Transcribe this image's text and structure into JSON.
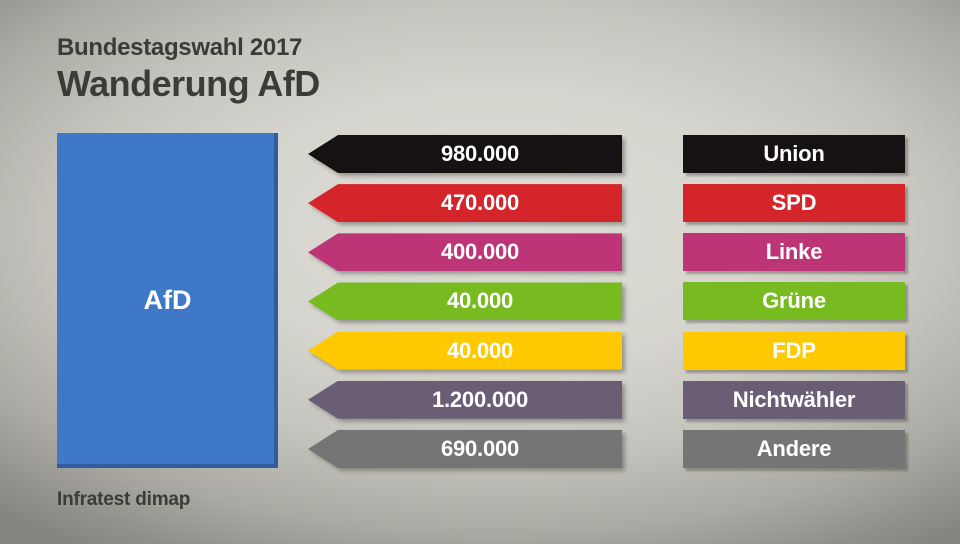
{
  "header": {
    "kicker": "Bundestagswahl 2017",
    "title": "Wanderung AfD"
  },
  "party_box": {
    "label": "AfD",
    "color": "#3e78c6",
    "edge_color": "#2f5fa1"
  },
  "source": "Infratest dimap",
  "chart_data": {
    "type": "bar",
    "title": "Wanderung AfD",
    "subtitle": "Bundestagswahl 2017",
    "description": "Voter migration flows toward AfD (left-pointing arrows from each source group into the AfD box)",
    "target_party": "AfD",
    "categories": [
      "Union",
      "SPD",
      "Linke",
      "Grüne",
      "FDP",
      "Nichtwähler",
      "Andere"
    ],
    "values": [
      980000,
      470000,
      400000,
      40000,
      40000,
      1200000,
      690000
    ],
    "value_labels": [
      "980.000",
      "470.000",
      "400.000",
      "40.000",
      "40.000",
      "1.200.000",
      "690.000"
    ],
    "colors": [
      "#161214",
      "#d4252b",
      "#bd3576",
      "#77bb21",
      "#fec900",
      "#695e74",
      "#737674"
    ],
    "text_color_on_bars": "#ffffff",
    "legend_position": "none",
    "grid": false,
    "source": "Infratest dimap"
  }
}
